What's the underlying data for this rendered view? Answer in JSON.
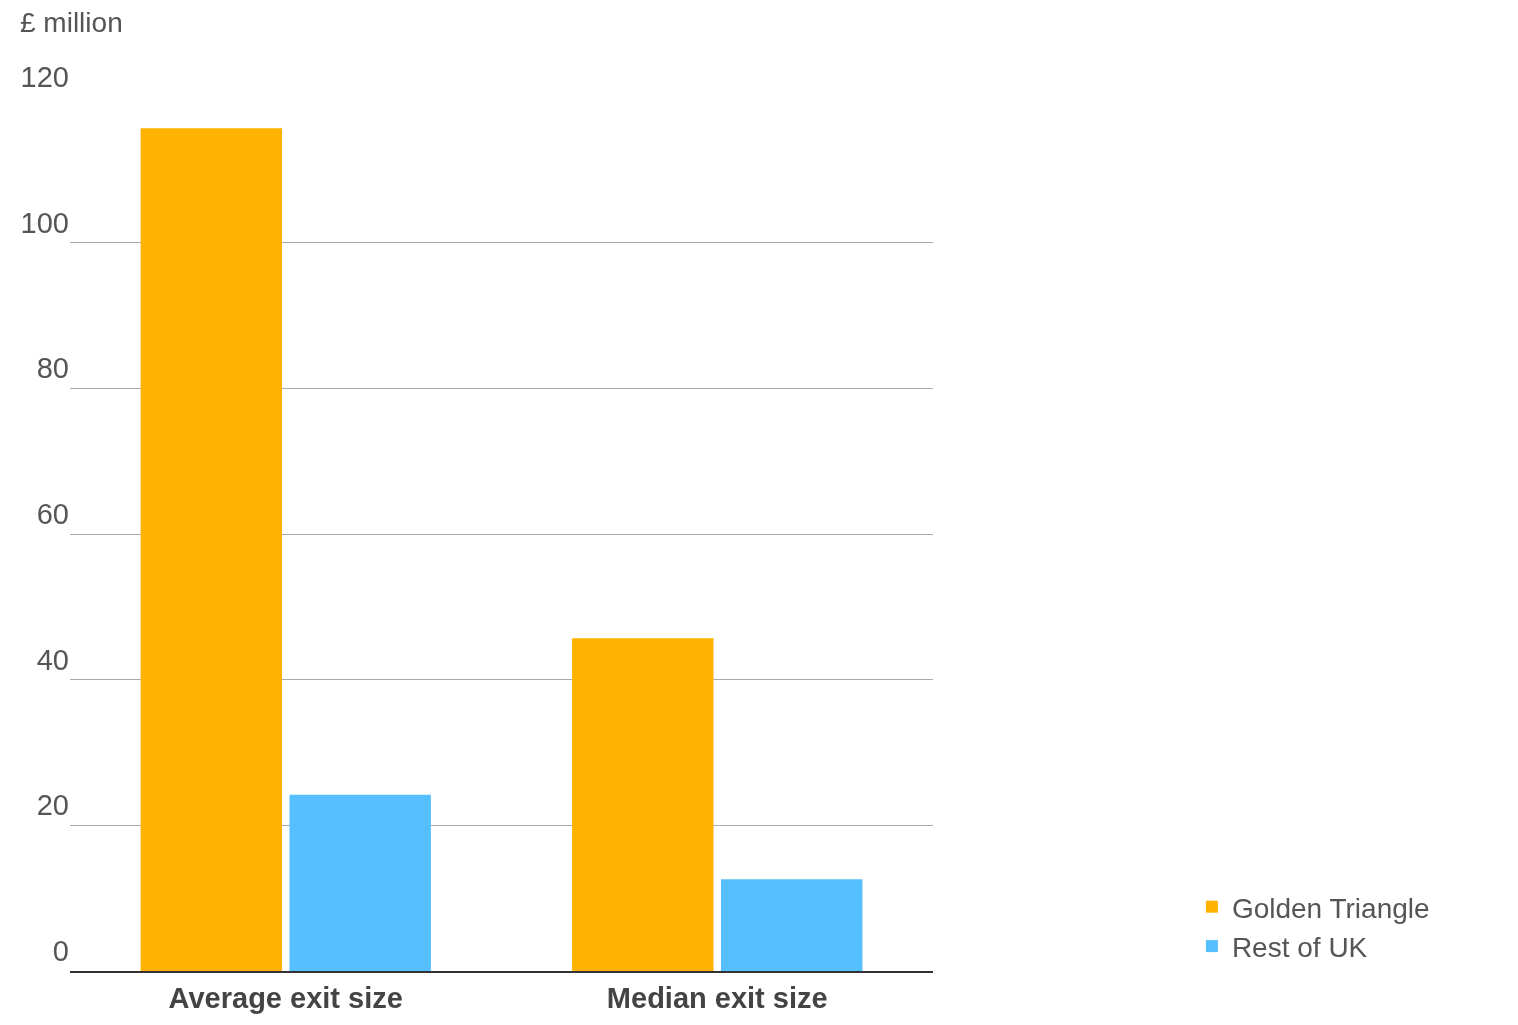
{
  "chart_data": {
    "type": "bar",
    "ylabel": "£ million",
    "categories": [
      "Average exit size",
      "Median exit size"
    ],
    "series": [
      {
        "name": "Golden Triangle",
        "color": "#ffb300",
        "values": [
          115.7,
          45.7
        ]
      },
      {
        "name": "Rest of UK",
        "color": "#55bfff",
        "values": [
          24.2,
          12.6
        ]
      }
    ],
    "ylim": [
      0,
      120
    ],
    "yticks": [
      0,
      20,
      40,
      60,
      80,
      100,
      120
    ],
    "grid": "y",
    "legend": "bottom right"
  }
}
